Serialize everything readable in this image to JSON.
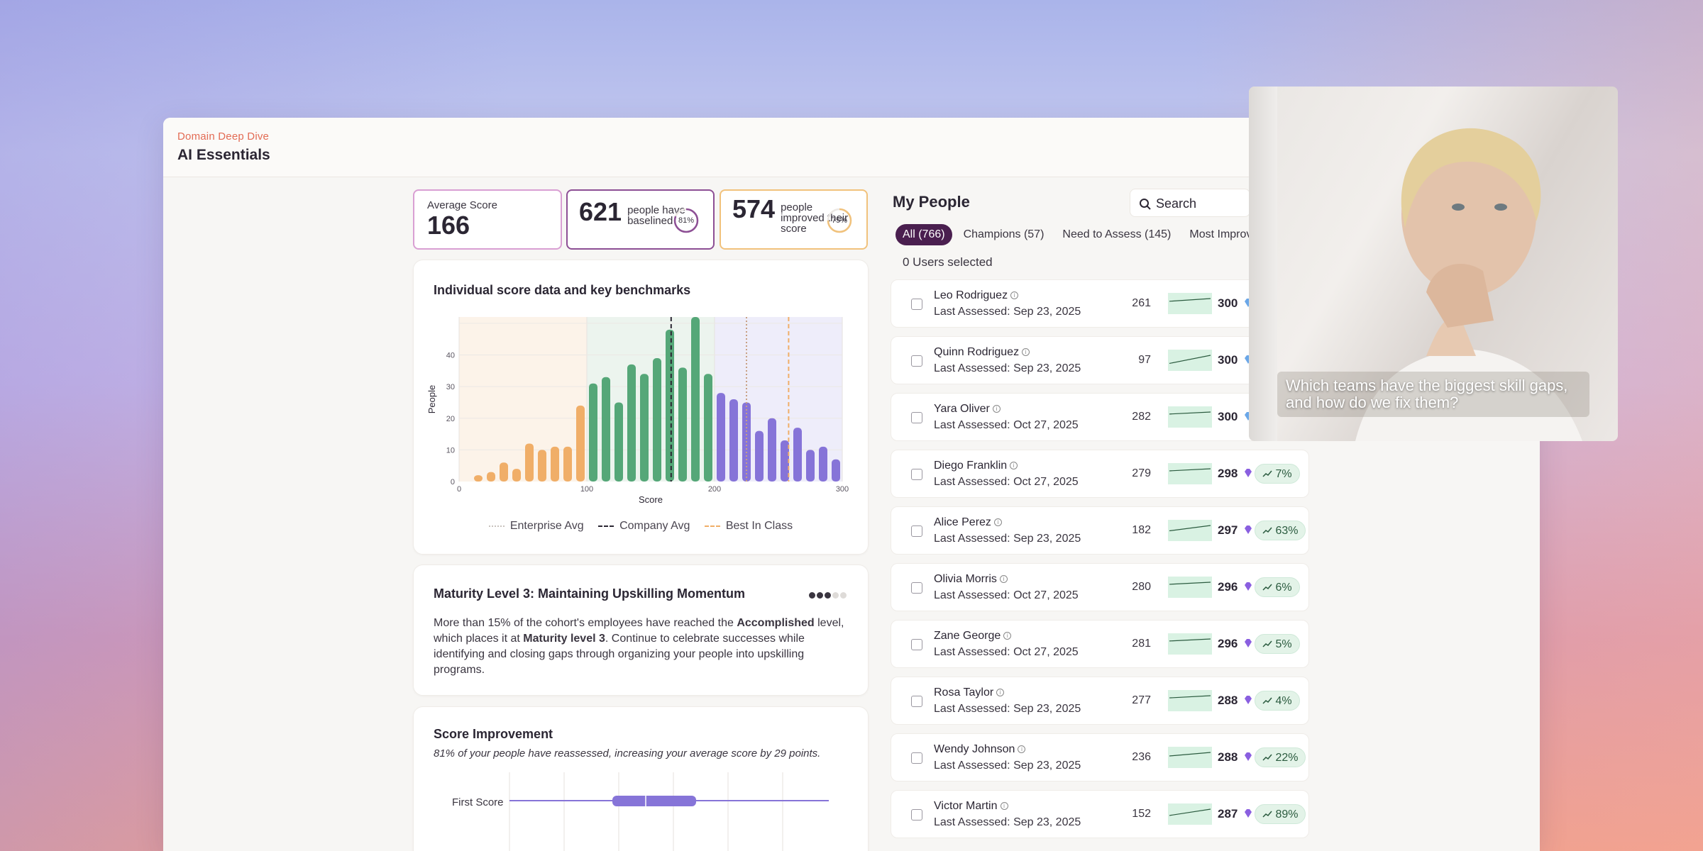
{
  "app": {
    "eyebrow": "Domain Deep Dive",
    "title": "AI Essentials"
  },
  "stats": {
    "average": {
      "label": "Average Score",
      "value": "166"
    },
    "baselined": {
      "value": "621",
      "desc": "people have baselined",
      "ring_pct": "81%",
      "ring_fraction": 0.81,
      "color": "#8d4f95"
    },
    "improved": {
      "value": "574",
      "desc": "people improved their score",
      "ring_pct": "75%",
      "ring_fraction": 0.75,
      "color": "#f1c27c"
    }
  },
  "chart_card": {
    "title": "Individual score data and key benchmarks"
  },
  "chart_data": {
    "type": "bar",
    "xlabel": "Score",
    "ylabel": "People",
    "xlim": [
      0,
      300
    ],
    "ylim": [
      0,
      52
    ],
    "xticks": [
      "0",
      "100",
      "200",
      "300"
    ],
    "yticks": [
      "0",
      "10",
      "20",
      "30",
      "40"
    ],
    "bins_x": [
      15,
      25,
      35,
      45,
      55,
      65,
      75,
      85,
      95,
      105,
      115,
      125,
      135,
      145,
      155,
      165,
      175,
      185,
      195,
      205,
      215,
      225,
      235,
      245,
      255,
      265,
      275,
      285,
      295
    ],
    "values": [
      2,
      3,
      6,
      4,
      12,
      10,
      11,
      11,
      24,
      31,
      33,
      25,
      37,
      34,
      39,
      48,
      36,
      52,
      34,
      28,
      26,
      25,
      16,
      20,
      13,
      17,
      10,
      11,
      7
    ],
    "colors": {
      "low": "#f0ae68",
      "mid": "#55a778",
      "high": "#8674d8"
    },
    "regions": [
      {
        "from": 0,
        "to": 100,
        "color": "#fcf3e9"
      },
      {
        "from": 100,
        "to": 200,
        "color": "#ecf4ee"
      },
      {
        "from": 200,
        "to": 300,
        "color": "#eeedfa"
      }
    ],
    "benchmarks": [
      {
        "name": "Enterprise Avg",
        "x": 225,
        "style": "dotted",
        "color": "#c8a083"
      },
      {
        "name": "Company Avg",
        "x": 166,
        "style": "dashed",
        "color": "#2b2633"
      },
      {
        "name": "Best In Class",
        "x": 258,
        "style": "dashed",
        "color": "#f0ae68"
      }
    ],
    "legend": [
      "Enterprise Avg",
      "Company Avg",
      "Best In Class"
    ]
  },
  "maturity": {
    "title": "Maturity Level 3: Maintaining Upskilling Momentum",
    "text_1": "More than 15% of the cohort's employees have reached the ",
    "bold_1": "Accomplished",
    "text_2": " level, which places it at ",
    "bold_2": "Maturity level 3",
    "text_3": ". Continue to celebrate successes while identifying and closing gaps through organizing your people into upskilling programs.",
    "level": 3,
    "max_level": 5
  },
  "improvement": {
    "title": "Score Improvement",
    "subtitle": "81% of your people have reassessed, increasing your average score by 29 points.",
    "row_label": "First Score"
  },
  "people": {
    "title": "My People",
    "search_placeholder": "Search",
    "tabs": [
      "All (766)",
      "Champions (57)",
      "Need to Assess (145)",
      "Most Improved"
    ],
    "selected_text": "0 Users selected",
    "rows": [
      {
        "name": "Leo Rodriguez",
        "date": "Last Assessed: Sep 23, 2025",
        "first": "261",
        "current": "300",
        "gem": "blue",
        "pct": ""
      },
      {
        "name": "Quinn Rodriguez",
        "date": "Last Assessed: Sep 23, 2025",
        "first": "97",
        "current": "300",
        "gem": "blue",
        "pct": ""
      },
      {
        "name": "Yara Oliver",
        "date": "Last Assessed: Oct 27, 2025",
        "first": "282",
        "current": "300",
        "gem": "blue",
        "pct": ""
      },
      {
        "name": "Diego Franklin",
        "date": "Last Assessed: Oct 27, 2025",
        "first": "279",
        "current": "298",
        "gem": "purple",
        "pct": "7%"
      },
      {
        "name": "Alice Perez",
        "date": "Last Assessed: Sep 23, 2025",
        "first": "182",
        "current": "297",
        "gem": "purple",
        "pct": "63%"
      },
      {
        "name": "Olivia Morris",
        "date": "Last Assessed: Oct 27, 2025",
        "first": "280",
        "current": "296",
        "gem": "purple",
        "pct": "6%"
      },
      {
        "name": "Zane George",
        "date": "Last Assessed: Oct 27, 2025",
        "first": "281",
        "current": "296",
        "gem": "purple",
        "pct": "5%"
      },
      {
        "name": "Rosa Taylor",
        "date": "Last Assessed: Sep 23, 2025",
        "first": "277",
        "current": "288",
        "gem": "purple",
        "pct": "4%"
      },
      {
        "name": "Wendy Johnson",
        "date": "Last Assessed: Sep 23, 2025",
        "first": "236",
        "current": "288",
        "gem": "purple",
        "pct": "22%"
      },
      {
        "name": "Victor Martin",
        "date": "Last Assessed: Sep 23, 2025",
        "first": "152",
        "current": "287",
        "gem": "purple",
        "pct": "89%"
      }
    ]
  },
  "video": {
    "caption": "Which teams have the biggest skill gaps, and how do we fix them?"
  }
}
